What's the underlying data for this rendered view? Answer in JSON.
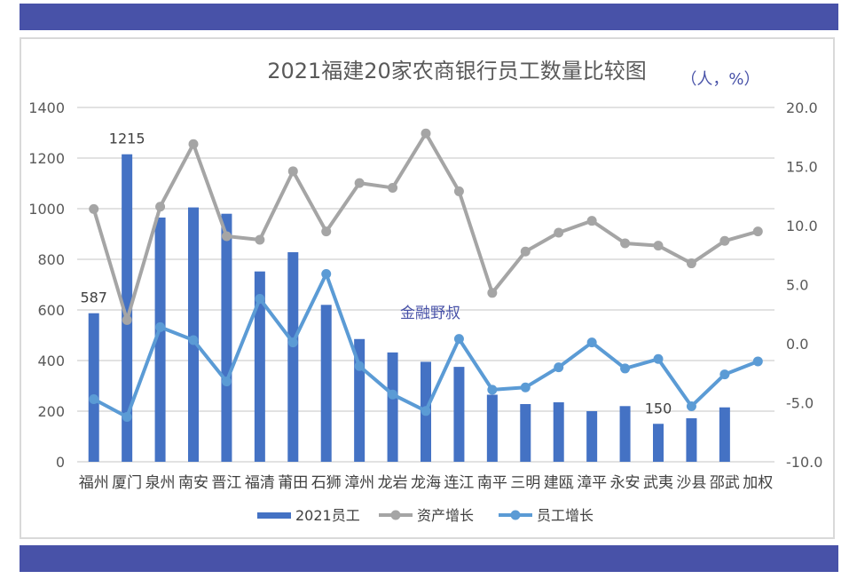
{
  "chart_data": {
    "type": "bar+line",
    "title": "2021福建20家农商银行员工数量比较图",
    "unit_note": "（人，%）",
    "watermark": "金融野叔",
    "categories": [
      "福州",
      "厦门",
      "泉州",
      "南安",
      "晋江",
      "福清",
      "莆田",
      "石狮",
      "漳州",
      "龙岩",
      "龙海",
      "连江",
      "南平",
      "三明",
      "建瓯",
      "漳平",
      "永安",
      "武夷",
      "沙县",
      "邵武",
      "加权"
    ],
    "series": [
      {
        "name": "2021员工",
        "type": "bar",
        "axis": "left",
        "color": "#4472c4",
        "values": [
          587,
          1215,
          965,
          1005,
          980,
          752,
          828,
          620,
          485,
          432,
          395,
          375,
          265,
          228,
          235,
          200,
          220,
          150,
          172,
          215,
          null
        ]
      },
      {
        "name": "资产增长",
        "type": "line",
        "axis": "right",
        "color": "#a5a5a5",
        "values": [
          11.4,
          2.0,
          11.6,
          16.9,
          9.1,
          8.8,
          14.6,
          9.5,
          13.6,
          13.2,
          17.8,
          12.9,
          4.3,
          7.8,
          9.4,
          10.4,
          8.5,
          8.3,
          6.8,
          8.7,
          9.5
        ]
      },
      {
        "name": "员工增长",
        "type": "line",
        "axis": "right",
        "color": "#5b9bd5",
        "values": [
          -4.7,
          -6.2,
          1.4,
          0.3,
          -3.2,
          3.8,
          0.1,
          5.9,
          -1.9,
          -4.3,
          -5.7,
          0.4,
          -3.9,
          -3.7,
          -2.0,
          0.1,
          -2.1,
          -1.3,
          -5.3,
          -2.6,
          -1.5
        ]
      }
    ],
    "data_labels": [
      {
        "category": "福州",
        "text": "587"
      },
      {
        "category": "厦门",
        "text": "1215"
      },
      {
        "category": "武夷",
        "text": "150"
      }
    ],
    "y_left": {
      "range": [
        0,
        1400
      ],
      "ticks": [
        "0",
        "200",
        "400",
        "600",
        "800",
        "1000",
        "1200",
        "1400"
      ]
    },
    "y_right": {
      "range": [
        -10,
        20
      ],
      "ticks": [
        "-10.0",
        "-5.0",
        "0.0",
        "5.0",
        "10.0",
        "15.0",
        "20.0"
      ]
    },
    "grid": true,
    "legend": "bottom",
    "banner_color": "#4852a8"
  }
}
